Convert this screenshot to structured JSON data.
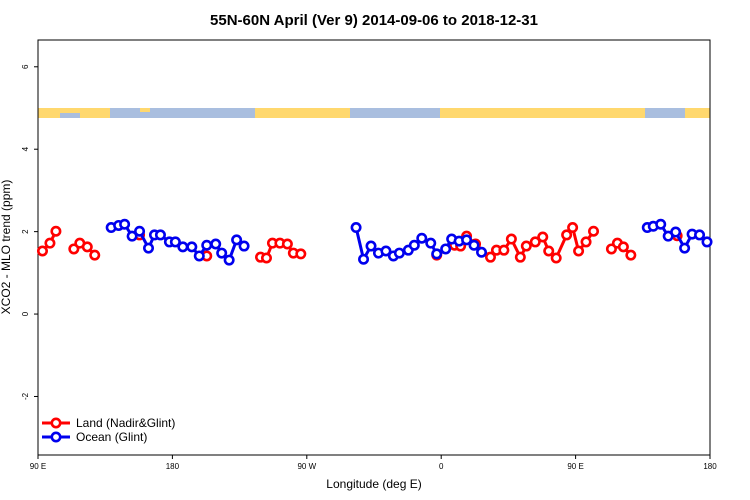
{
  "chart_data": {
    "type": "line",
    "title": "55N-60N April (Ver 9)   2014-09-06 to 2018-12-31",
    "x_label": "Longitude (deg E)",
    "y_label": "XCO2 - MLO trend (ppm)",
    "xlim": [
      90,
      540
    ],
    "xticks": [
      {
        "value": 90,
        "label": "90 E"
      },
      {
        "value": 180,
        "label": "180"
      },
      {
        "value": 270,
        "label": "90 W"
      },
      {
        "value": 360,
        "label": "0"
      },
      {
        "value": 450,
        "label": "90 E"
      },
      {
        "value": 540,
        "label": "180"
      }
    ],
    "ylim": [
      -3.42,
      6.65
    ],
    "yticks": [
      -2,
      0,
      2,
      4,
      6
    ],
    "legend": "bottom-left",
    "series": [
      {
        "name": "Land (Nadir&Glint)",
        "color": "#ff0000",
        "x": [
          93,
          98,
          102,
          null,
          114,
          118,
          123,
          128,
          null,
          158,
          null,
          203,
          null,
          239,
          243,
          247,
          252,
          257,
          261,
          266,
          null,
          357,
          369,
          373,
          377,
          383,
          393,
          397,
          402,
          407,
          413,
          417,
          423,
          428,
          432,
          437,
          444,
          448,
          452,
          457,
          462,
          null,
          474,
          478,
          482,
          487,
          null,
          518
        ],
        "values": [
          1.53,
          1.72,
          2.01,
          null,
          1.58,
          1.72,
          1.63,
          1.43,
          null,
          1.92,
          null,
          1.41,
          null,
          1.38,
          1.36,
          1.72,
          1.72,
          1.7,
          1.48,
          1.46,
          null,
          1.43,
          1.67,
          1.65,
          1.89,
          1.7,
          1.38,
          1.55,
          1.55,
          1.82,
          1.38,
          1.65,
          1.75,
          1.87,
          1.53,
          1.36,
          1.92,
          2.1,
          1.53,
          1.75,
          2.01,
          null,
          1.58,
          1.72,
          1.63,
          1.43,
          null,
          1.9
        ]
      },
      {
        "name": "Ocean (Glint)",
        "color": "#0000ee",
        "x": [
          139,
          144,
          148,
          153,
          158,
          164,
          168,
          172,
          178,
          182,
          187,
          193,
          198,
          203,
          209,
          213,
          218,
          223,
          228,
          null,
          303,
          308,
          313,
          318,
          323,
          328,
          332,
          338,
          342,
          347,
          353,
          357,
          363,
          367,
          372,
          377,
          382,
          387,
          null,
          498,
          502,
          507,
          512,
          517,
          523,
          528,
          533,
          538
        ],
        "values": [
          2.1,
          2.15,
          2.18,
          1.89,
          2.01,
          1.6,
          1.92,
          1.92,
          1.75,
          1.75,
          1.63,
          1.63,
          1.41,
          1.67,
          1.7,
          1.48,
          1.31,
          1.8,
          1.65,
          null,
          2.1,
          1.33,
          1.65,
          1.48,
          1.53,
          1.41,
          1.48,
          1.55,
          1.67,
          1.84,
          1.72,
          1.46,
          1.58,
          1.82,
          1.77,
          1.8,
          1.67,
          1.5,
          null,
          2.1,
          2.13,
          2.18,
          1.89,
          1.99,
          1.6,
          1.94,
          1.92,
          1.75
        ]
      }
    ]
  }
}
